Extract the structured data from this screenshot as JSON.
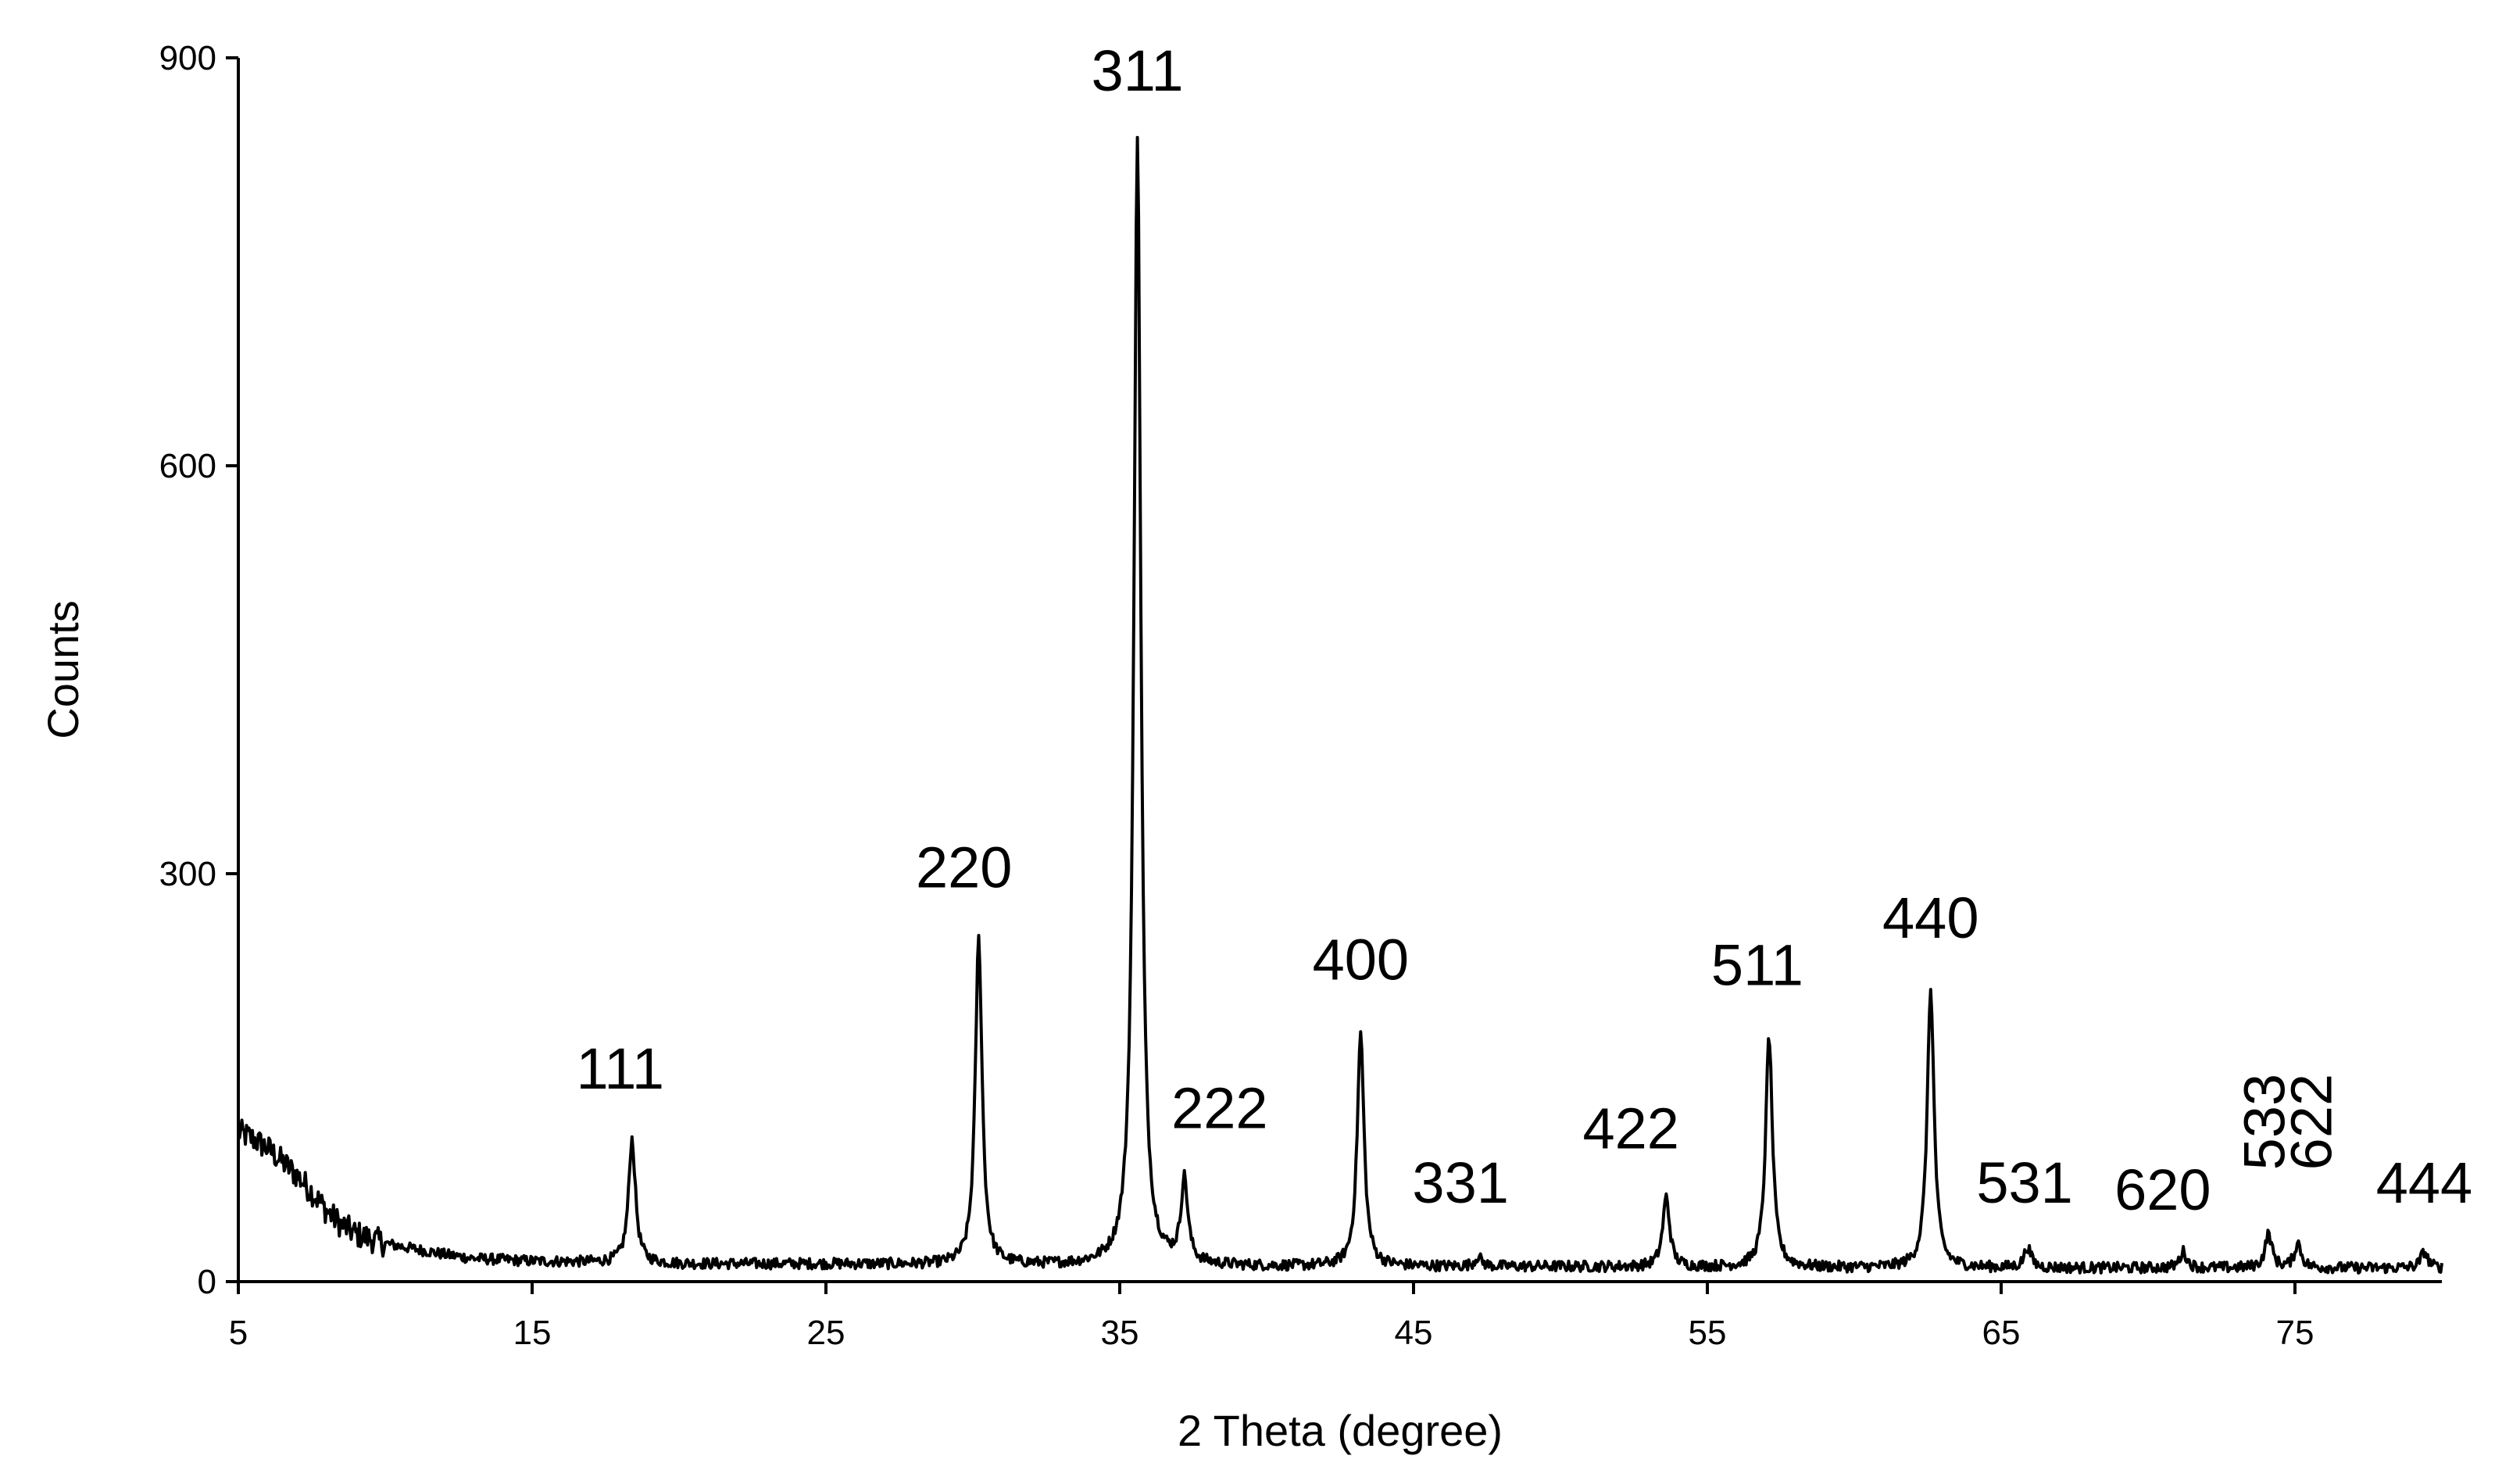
{
  "chart_data": {
    "type": "line",
    "xlabel": "2 Theta (degree)",
    "ylabel": "Counts",
    "xlim": [
      5,
      80
    ],
    "ylim": [
      0,
      900
    ],
    "xticks": [
      5,
      15,
      25,
      35,
      45,
      55,
      65,
      75
    ],
    "yticks": [
      0,
      300,
      600,
      900
    ],
    "grid": false,
    "line_color": "#000000",
    "baseline": [
      [
        5,
        110
      ],
      [
        5.5,
        105
      ],
      [
        6,
        98
      ],
      [
        6.5,
        88
      ],
      [
        7,
        78
      ],
      [
        7.5,
        66
      ],
      [
        8,
        52
      ],
      [
        8.5,
        42
      ],
      [
        9,
        35
      ],
      [
        10,
        28
      ],
      [
        11,
        24
      ],
      [
        12,
        20
      ],
      [
        13,
        17
      ],
      [
        15,
        15
      ],
      [
        20,
        13
      ],
      [
        25,
        13
      ],
      [
        30,
        12
      ],
      [
        40,
        11
      ],
      [
        50,
        11
      ],
      [
        60,
        10
      ],
      [
        70,
        10
      ],
      [
        80,
        10
      ]
    ],
    "peaks": [
      {
        "label": "111",
        "x": 18.4,
        "y": 105,
        "label_x": 18.0,
        "label_y": 142
      },
      {
        "label": "220",
        "x": 30.2,
        "y": 252,
        "label_x": 29.7,
        "label_y": 290
      },
      {
        "label": "311",
        "x": 35.6,
        "y": 842,
        "label_x": 35.6,
        "label_y": 876
      },
      {
        "label": "222",
        "x": 37.2,
        "y": 72,
        "label_x": 38.4,
        "label_y": 113
      },
      {
        "label": "400",
        "x": 43.2,
        "y": 182,
        "label_x": 43.2,
        "label_y": 222
      },
      {
        "label": "331",
        "x": 47.2,
        "y": 18,
        "label_x": 46.6,
        "label_y": 58
      },
      {
        "label": "422",
        "x": 53.6,
        "y": 62,
        "label_x": 52.4,
        "label_y": 98
      },
      {
        "label": "511",
        "x": 57.1,
        "y": 180,
        "label_x": 56.7,
        "label_y": 218
      },
      {
        "label": "440",
        "x": 62.6,
        "y": 215,
        "label_x": 62.6,
        "label_y": 253
      },
      {
        "label": "531",
        "x": 65.9,
        "y": 25,
        "label_x": 65.8,
        "label_y": 58
      },
      {
        "label": "620",
        "x": 71.2,
        "y": 22,
        "label_x": 70.5,
        "label_y": 53
      },
      {
        "label": "533",
        "x": 74.1,
        "y": 35,
        "label_x": 74.0,
        "label_y": 82,
        "rotate": true
      },
      {
        "label": "622",
        "x": 75.1,
        "y": 28,
        "label_x": 75.6,
        "label_y": 82,
        "rotate": true
      },
      {
        "label": "444",
        "x": 79.4,
        "y": 22,
        "label_x": 79.4,
        "label_y": 58
      }
    ]
  }
}
